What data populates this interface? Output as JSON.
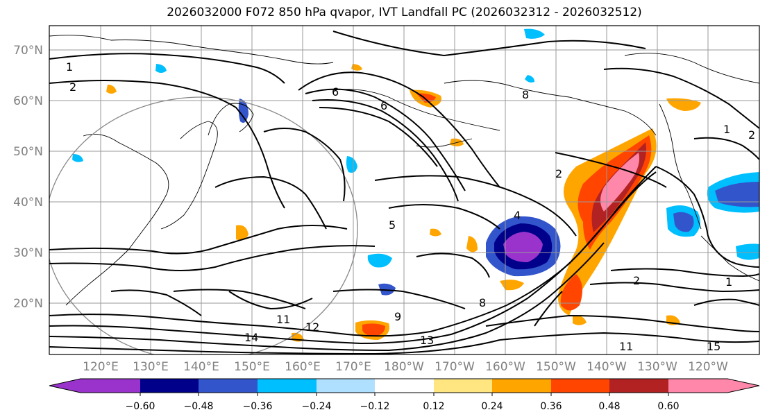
{
  "title": "2026032000 F072 850 hPa qvapor, IVT Landfall PC (2026032312 - 2026032512)",
  "map": {
    "lat_labels": [
      "70°N",
      "60°N",
      "50°N",
      "40°N",
      "30°N",
      "20°N"
    ],
    "lon_labels": [
      "120°E",
      "130°E",
      "140°E",
      "150°E",
      "160°E",
      "170°E",
      "180°W",
      "170°W",
      "160°W",
      "150°W",
      "140°W",
      "130°W",
      "120°W"
    ],
    "contour_labels": [
      "1",
      "2",
      "6",
      "8",
      "9",
      "5",
      "4",
      "11",
      "12",
      "13",
      "14",
      "15",
      "2",
      "2",
      "1",
      "11",
      "2",
      "1",
      "8",
      "6"
    ]
  },
  "colorbar": {
    "colors": [
      "#9933cc",
      "#00008b",
      "#3355cc",
      "#00bfff",
      "#b0e0ff",
      "#ffffff",
      "#ffe680",
      "#ffa500",
      "#ff4500",
      "#b22222",
      "#ff88aa",
      "#ff88aa"
    ],
    "tick_labels": [
      "−0.60",
      "−0.48",
      "−0.36",
      "−0.24",
      "−0.12",
      "0.12",
      "0.24",
      "0.36",
      "0.48",
      "0.60"
    ]
  }
}
